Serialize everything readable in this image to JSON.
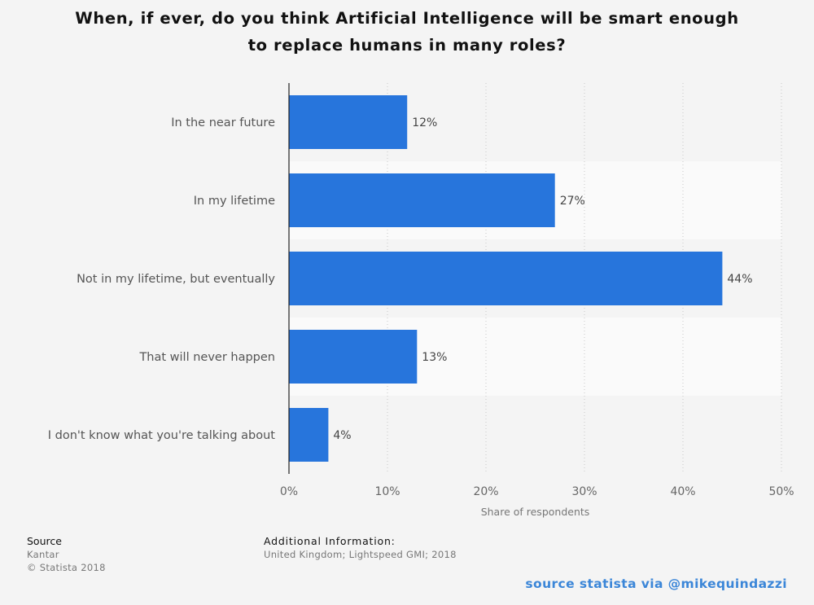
{
  "title": {
    "line1": "When, if ever, do you think Artificial Intelligence will be smart enough",
    "line2": "to replace humans in many roles?"
  },
  "chart_data": {
    "type": "bar",
    "orientation": "horizontal",
    "title": "When, if ever, do you think Artificial Intelligence will be smart enough to replace humans in many roles?",
    "categories": [
      "In the near future",
      "In my lifetime",
      "Not in my lifetime, but eventually",
      "That will never happen",
      "I don't know what you're talking about"
    ],
    "values": [
      12,
      27,
      44,
      13,
      4
    ],
    "value_labels": [
      "12%",
      "27%",
      "44%",
      "13%",
      "4%"
    ],
    "xlabel": "Share of respondents",
    "ylabel": "",
    "xlim": [
      0,
      50
    ],
    "xticks": [
      0,
      10,
      20,
      30,
      40,
      50
    ],
    "xtick_labels": [
      "0%",
      "10%",
      "20%",
      "30%",
      "40%",
      "50%"
    ],
    "grid": "vertical dotted",
    "bar_color": "#2775dc"
  },
  "footer": {
    "source_heading": "Source",
    "source_name": "Kantar",
    "copyright": "© Statista 2018",
    "additional_heading": "Additional Information:",
    "additional_text": "United Kingdom; Lightspeed GMI; 2018"
  },
  "credit": "source statista via @mikequindazzi",
  "colors": {
    "background": "#f4f4f4",
    "band": "#fafafa",
    "bar": "#2775dc",
    "credit": "#3b86d8"
  }
}
